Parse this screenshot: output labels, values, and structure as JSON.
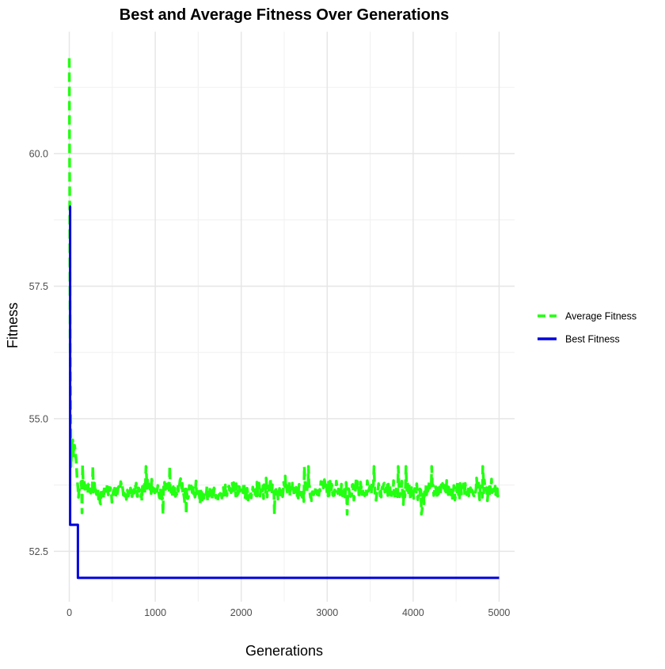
{
  "chart_data": {
    "type": "line",
    "title": "Best and Average Fitness Over Generations",
    "xlabel": "Generations",
    "ylabel": "Fitness",
    "xlim": [
      -180,
      5180
    ],
    "ylim": [
      51.55,
      62.3
    ],
    "x_ticks": [
      0,
      1000,
      2000,
      3000,
      4000,
      5000
    ],
    "x_tick_labels": [
      "0",
      "1000",
      "2000",
      "3000",
      "4000",
      "5000"
    ],
    "y_ticks": [
      52.5,
      55.0,
      57.5,
      60.0
    ],
    "y_tick_labels": [
      "52.5",
      "55.0",
      "57.5",
      "60.0"
    ],
    "grid": true,
    "legend_position": "right",
    "series": [
      {
        "name": "Average Fitness",
        "color": "#22ff11",
        "line_style": "dashed",
        "noise_range": [
          53.2,
          54.15
        ],
        "x": [
          0,
          10,
          20,
          30,
          40,
          50,
          60,
          70,
          80,
          90,
          100,
          200,
          500,
          1000,
          2000,
          3000,
          3700,
          4000,
          4500,
          5000
        ],
        "y": [
          61.8,
          56.5,
          54.1,
          54.5,
          54.6,
          54.3,
          54.5,
          54.4,
          54.2,
          53.9,
          53.7,
          53.65,
          53.65,
          53.65,
          53.65,
          53.65,
          53.65,
          53.65,
          53.65,
          53.65
        ]
      },
      {
        "name": "Best Fitness",
        "color": "#0000dd",
        "line_style": "solid",
        "step": true,
        "x": [
          0,
          10,
          100,
          5000
        ],
        "y": [
          59.0,
          53.0,
          52.0,
          52.0
        ]
      }
    ]
  }
}
